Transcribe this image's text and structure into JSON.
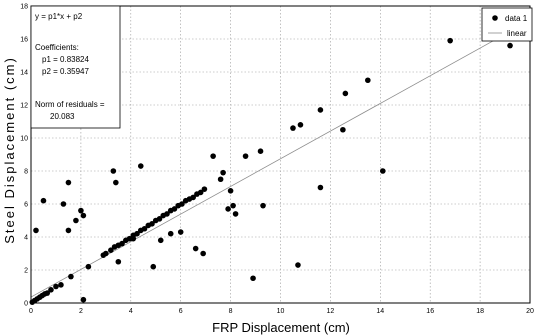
{
  "chart_data": {
    "type": "scatter",
    "xlabel": "FRP Displacement (cm)",
    "ylabel": "Steel Displacement (cm)",
    "xlim": [
      0,
      20
    ],
    "ylim": [
      0,
      18
    ],
    "xticks": [
      "0",
      "2",
      "4",
      "6",
      "8",
      "10",
      "12",
      "14",
      "16",
      "18",
      "20"
    ],
    "yticks": [
      "0",
      "2",
      "4",
      "6",
      "8",
      "10",
      "12",
      "14",
      "16",
      "18"
    ],
    "grid": true,
    "legend": {
      "placement": "top-right",
      "entries": [
        {
          "label": "data 1",
          "marker": "dot"
        },
        {
          "label": "linear",
          "marker": "line"
        }
      ]
    },
    "annotation": {
      "equation": "y = p1*x + p2",
      "coefficients_label": "Coefficients:",
      "p1": "p1 = 0.83824",
      "p2": "p2 = 0.35947",
      "norm_label": "Norm of residuals =",
      "norm_value": "20.083"
    },
    "fit": {
      "p1": 0.83824,
      "p2": 0.35947
    },
    "series": [
      {
        "name": "data 1",
        "points": [
          [
            0.05,
            0.05
          ],
          [
            0.15,
            0.15
          ],
          [
            0.25,
            0.25
          ],
          [
            0.35,
            0.35
          ],
          [
            0.45,
            0.45
          ],
          [
            0.55,
            0.55
          ],
          [
            0.65,
            0.6
          ],
          [
            0.8,
            0.8
          ],
          [
            1.0,
            1.0
          ],
          [
            1.2,
            1.1
          ],
          [
            1.6,
            1.6
          ],
          [
            2.3,
            2.2
          ],
          [
            2.1,
            0.2
          ],
          [
            0.2,
            4.4
          ],
          [
            0.5,
            6.2
          ],
          [
            1.3,
            6.0
          ],
          [
            1.5,
            7.3
          ],
          [
            1.5,
            4.4
          ],
          [
            1.8,
            5.0
          ],
          [
            2.0,
            5.6
          ],
          [
            2.1,
            5.3
          ],
          [
            2.9,
            2.9
          ],
          [
            3.0,
            3.0
          ],
          [
            3.2,
            3.2
          ],
          [
            3.35,
            3.4
          ],
          [
            3.5,
            3.5
          ],
          [
            3.65,
            3.6
          ],
          [
            3.8,
            3.8
          ],
          [
            3.95,
            3.9
          ],
          [
            4.1,
            4.1
          ],
          [
            4.25,
            4.2
          ],
          [
            4.4,
            4.4
          ],
          [
            4.55,
            4.5
          ],
          [
            4.7,
            4.7
          ],
          [
            4.85,
            4.8
          ],
          [
            5.0,
            5.0
          ],
          [
            5.15,
            5.1
          ],
          [
            5.3,
            5.3
          ],
          [
            5.45,
            5.4
          ],
          [
            5.6,
            5.6
          ],
          [
            5.75,
            5.7
          ],
          [
            5.9,
            5.9
          ],
          [
            6.05,
            6.0
          ],
          [
            6.2,
            6.2
          ],
          [
            6.35,
            6.3
          ],
          [
            6.5,
            6.4
          ],
          [
            6.65,
            6.6
          ],
          [
            6.8,
            6.7
          ],
          [
            6.95,
            6.9
          ],
          [
            3.3,
            8.0
          ],
          [
            3.4,
            7.3
          ],
          [
            3.5,
            2.5
          ],
          [
            4.4,
            8.3
          ],
          [
            4.1,
            3.9
          ],
          [
            4.9,
            2.2
          ],
          [
            5.2,
            3.8
          ],
          [
            5.6,
            4.2
          ],
          [
            6.0,
            4.3
          ],
          [
            6.6,
            3.3
          ],
          [
            6.9,
            3.0
          ],
          [
            7.3,
            8.9
          ],
          [
            7.6,
            7.5
          ],
          [
            7.7,
            7.9
          ],
          [
            7.9,
            5.7
          ],
          [
            8.0,
            6.8
          ],
          [
            8.1,
            5.9
          ],
          [
            8.2,
            5.4
          ],
          [
            8.6,
            8.9
          ],
          [
            8.9,
            1.5
          ],
          [
            9.2,
            9.2
          ],
          [
            9.3,
            5.9
          ],
          [
            10.5,
            10.6
          ],
          [
            10.7,
            2.3
          ],
          [
            10.8,
            10.8
          ],
          [
            11.6,
            11.7
          ],
          [
            11.6,
            7.0
          ],
          [
            12.5,
            10.5
          ],
          [
            12.6,
            12.7
          ],
          [
            13.5,
            13.5
          ],
          [
            14.1,
            8.0
          ],
          [
            16.8,
            15.9
          ],
          [
            19.2,
            15.6
          ]
        ]
      }
    ]
  }
}
